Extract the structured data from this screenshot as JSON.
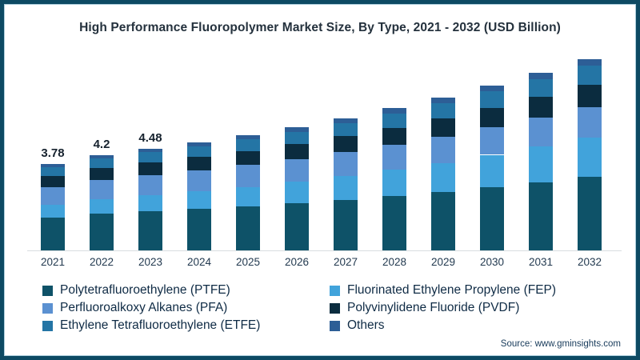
{
  "source_note": "Source: www.gminsights.com",
  "frame_border_color": "#0d4a63",
  "chart_data": {
    "type": "bar",
    "stacked": true,
    "title": "High Performance Fluoropolymer Market Size, By Type, 2021 - 2032 (USD Billion)",
    "unit": "USD Billion",
    "categories": [
      "2021",
      "2022",
      "2023",
      "2024",
      "2025",
      "2026",
      "2027",
      "2028",
      "2029",
      "2030",
      "2031",
      "2032"
    ],
    "series": [
      {
        "name": "Polytetrafluoroethylene (PTFE)",
        "color": "#0e5268",
        "values": [
          1.45,
          1.61,
          1.72,
          1.82,
          1.93,
          2.07,
          2.22,
          2.39,
          2.57,
          2.78,
          2.99,
          3.22
        ]
      },
      {
        "name": "Fluorinated Ethylene Propylene (FEP)",
        "color": "#41a3db",
        "values": [
          0.55,
          0.63,
          0.7,
          0.77,
          0.85,
          0.94,
          1.04,
          1.15,
          1.27,
          1.42,
          1.57,
          1.74
        ]
      },
      {
        "name": "Perfluoroalkoxy Alkanes (PFA)",
        "color": "#5b91d1",
        "values": [
          0.79,
          0.86,
          0.9,
          0.93,
          0.97,
          1.01,
          1.06,
          1.11,
          1.16,
          1.22,
          1.28,
          1.34
        ]
      },
      {
        "name": "Polyvinylidene Fluoride (PVDF)",
        "color": "#0b2c3f",
        "values": [
          0.48,
          0.53,
          0.56,
          0.59,
          0.62,
          0.65,
          0.7,
          0.74,
          0.79,
          0.84,
          0.9,
          0.96
        ]
      },
      {
        "name": "Ethylene Tetrafluoroethylene (ETFE)",
        "color": "#2475a5",
        "values": [
          0.38,
          0.42,
          0.45,
          0.47,
          0.5,
          0.54,
          0.58,
          0.63,
          0.67,
          0.73,
          0.78,
          0.85
        ]
      },
      {
        "name": "Others",
        "color": "#2d5e96",
        "values": [
          0.13,
          0.15,
          0.15,
          0.17,
          0.18,
          0.19,
          0.2,
          0.23,
          0.24,
          0.26,
          0.28,
          0.29
        ]
      }
    ],
    "bar_total_labels": [
      "3.78",
      "4.2",
      "4.48",
      "",
      "",
      "",
      "",
      "",
      "",
      "",
      "",
      ""
    ],
    "totals": [
      3.78,
      4.2,
      4.48,
      4.75,
      5.05,
      5.4,
      5.8,
      6.25,
      6.7,
      7.25,
      7.8,
      8.4
    ],
    "ylim": [
      0,
      8.4
    ],
    "grid": false,
    "legend_position": "bottom"
  }
}
